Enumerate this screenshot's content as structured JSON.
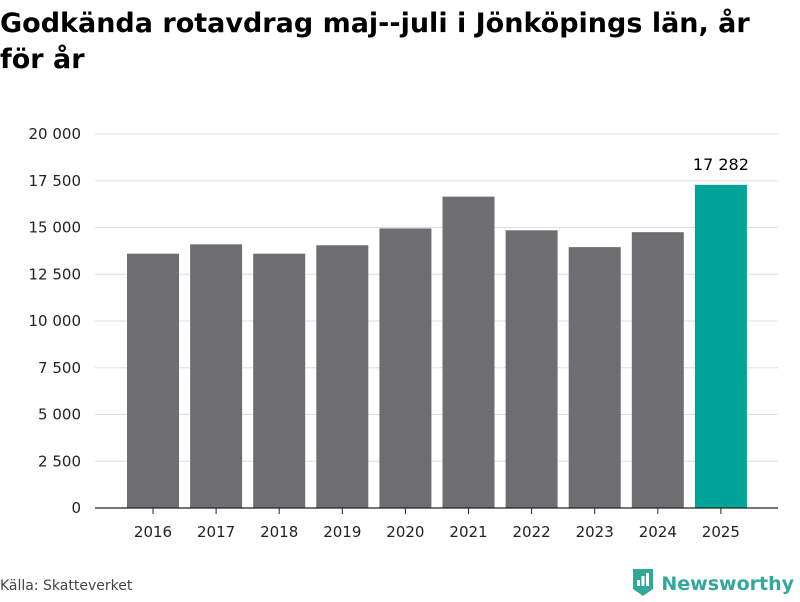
{
  "title": "Godkända rotavdrag maj--juli i Jönköpings län, år för år",
  "source": "Källa: Skatteverket",
  "brand": {
    "name": "Newsworthy",
    "icon": "bar-chart-logo-icon"
  },
  "colors": {
    "bar": "#6d6d72",
    "highlight": "#00a39a",
    "grid": "#dddddd",
    "axis": "#222222",
    "brand": "#33a89a"
  },
  "chart_data": {
    "type": "bar",
    "categories": [
      "2016",
      "2017",
      "2018",
      "2019",
      "2020",
      "2021",
      "2022",
      "2023",
      "2024",
      "2025"
    ],
    "values": [
      13600,
      14100,
      13600,
      14050,
      14950,
      16650,
      14850,
      13950,
      14750,
      17282
    ],
    "highlight_index": 9,
    "data_labels": [
      {
        "index": 9,
        "text": "17 282"
      }
    ],
    "yticks": [
      0,
      2500,
      5000,
      7500,
      10000,
      12500,
      15000,
      17500,
      20000
    ],
    "ytick_labels": [
      "0",
      "2 500",
      "5 000",
      "7 500",
      "10 000",
      "12 500",
      "15 000",
      "17 500",
      "20 000"
    ],
    "ylim": [
      0,
      20000
    ],
    "xlabel": "",
    "ylabel": "",
    "grid": true,
    "legend": "none"
  }
}
